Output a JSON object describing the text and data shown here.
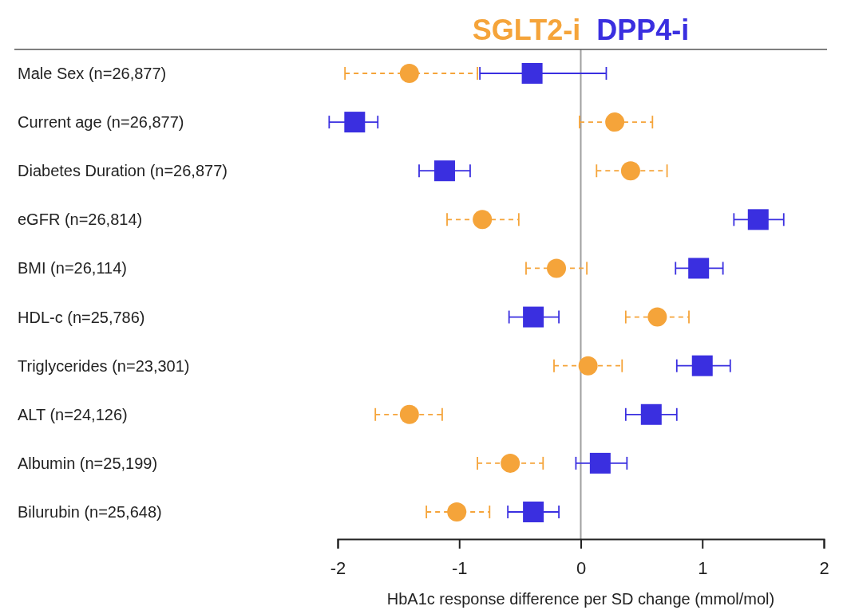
{
  "chart_data": {
    "type": "scatter",
    "orientation": "horizontal",
    "legend": "top",
    "xlabel": "HbA1c response difference per SD change (mmol/mol)",
    "categories": [
      "Male Sex (n=26,877)",
      "Current age (n=26,877)",
      "Diabetes Duration (n=26,877)",
      "eGFR (n=26,814)",
      "BMI (n=26,114)",
      "HDL-c (n=25,786)",
      "Triglycerides (n=23,301)",
      "ALT (n=24,126)",
      "Albumin (n=25,199)",
      "Bilurubin (n=25,648)"
    ],
    "series": [
      {
        "name": "SGLT2-i",
        "color": "#f5a43a",
        "marker": "circle",
        "line_style": "dashed",
        "values": [
          -1.41,
          0.28,
          0.41,
          -0.81,
          -0.2,
          0.63,
          0.06,
          -1.41,
          -0.58,
          -1.02
        ],
        "errors": [
          [
            -1.94,
            -0.85
          ],
          [
            -0.01,
            0.59
          ],
          [
            0.13,
            0.71
          ],
          [
            -1.1,
            -0.51
          ],
          [
            -0.45,
            0.05
          ],
          [
            0.37,
            0.89
          ],
          [
            -0.22,
            0.34
          ],
          [
            -1.69,
            -1.14
          ],
          [
            -0.85,
            -0.31
          ],
          [
            -1.27,
            -0.75
          ]
        ]
      },
      {
        "name": "DPP4-i",
        "color": "#3a2fe0",
        "marker": "square",
        "line_style": "solid",
        "values": [
          -0.4,
          -1.86,
          -1.12,
          1.46,
          0.97,
          -0.39,
          1.0,
          0.58,
          0.16,
          -0.39
        ],
        "errors": [
          [
            -0.83,
            0.21
          ],
          [
            -2.07,
            -1.67
          ],
          [
            -1.33,
            -0.91
          ],
          [
            1.26,
            1.67
          ],
          [
            0.78,
            1.17
          ],
          [
            -0.59,
            -0.18
          ],
          [
            0.79,
            1.23
          ],
          [
            0.37,
            0.79
          ],
          [
            -0.04,
            0.38
          ],
          [
            -0.6,
            -0.18
          ]
        ]
      }
    ],
    "xlim": [
      -2,
      2
    ],
    "xticks": [
      -2,
      -1,
      0,
      1,
      2
    ],
    "ref_lines": [
      {
        "axis": "x",
        "value": 0,
        "color": "#a0a0a0"
      }
    ]
  }
}
